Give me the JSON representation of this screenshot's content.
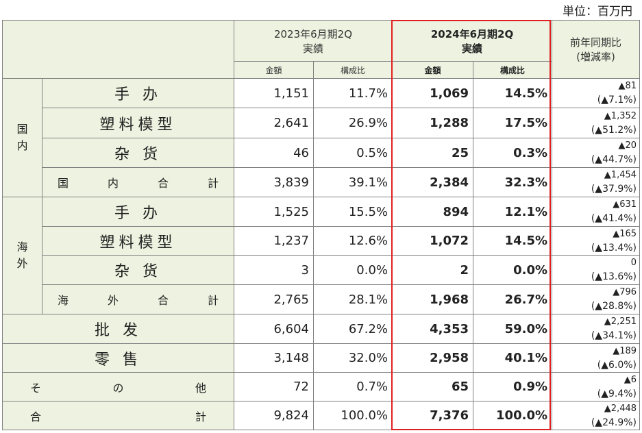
{
  "unit_label": "単位：百万円",
  "header": {
    "col2023": "2023年6月期2Q",
    "col2023_sub": "実績",
    "col2024": "2024年6月期2Q",
    "col2024_sub": "実績",
    "yoy": "前年同期比",
    "yoy_sub": "(増減率)",
    "amount": "金額",
    "ratio": "構成比"
  },
  "labels": {
    "domestic": [
      "国",
      "内"
    ],
    "overseas": [
      "海",
      "外"
    ],
    "te_ban": "手 办",
    "plastic": "塑料模型",
    "goods": "杂 货",
    "dom_total": [
      "国",
      "内",
      "合",
      "計"
    ],
    "ovs_total": [
      "海",
      "外",
      "合",
      "計"
    ],
    "wholesale": "批 发",
    "retail": "零 售",
    "other": [
      "そ",
      "の",
      "他"
    ],
    "grand": [
      "合",
      "計"
    ]
  },
  "rows": [
    {
      "a23": "1,151",
      "r23": "11.7%",
      "a24": "1,069",
      "r24": "14.5%",
      "yoy": "▲81",
      "yoy_pct": "(▲7.1%)"
    },
    {
      "a23": "2,641",
      "r23": "26.9%",
      "a24": "1,288",
      "r24": "17.5%",
      "yoy": "▲1,352",
      "yoy_pct": "(▲51.2%)"
    },
    {
      "a23": "46",
      "r23": "0.5%",
      "a24": "25",
      "r24": "0.3%",
      "yoy": "▲20",
      "yoy_pct": "(▲44.7%)"
    },
    {
      "a23": "3,839",
      "r23": "39.1%",
      "a24": "2,384",
      "r24": "32.3%",
      "yoy": "▲1,454",
      "yoy_pct": "(▲37.9%)"
    },
    {
      "a23": "1,525",
      "r23": "15.5%",
      "a24": "894",
      "r24": "12.1%",
      "yoy": "▲631",
      "yoy_pct": "(▲41.4%)"
    },
    {
      "a23": "1,237",
      "r23": "12.6%",
      "a24": "1,072",
      "r24": "14.5%",
      "yoy": "▲165",
      "yoy_pct": "(▲13.4%)"
    },
    {
      "a23": "3",
      "r23": "0.0%",
      "a24": "2",
      "r24": "0.0%",
      "yoy": "0",
      "yoy_pct": "(▲13.6%)"
    },
    {
      "a23": "2,765",
      "r23": "28.1%",
      "a24": "1,968",
      "r24": "26.7%",
      "yoy": "▲796",
      "yoy_pct": "(▲28.8%)"
    },
    {
      "a23": "6,604",
      "r23": "67.2%",
      "a24": "4,353",
      "r24": "59.0%",
      "yoy": "▲2,251",
      "yoy_pct": "(▲34.1%)"
    },
    {
      "a23": "3,148",
      "r23": "32.0%",
      "a24": "2,958",
      "r24": "40.1%",
      "yoy": "▲189",
      "yoy_pct": "(▲6.0%)"
    },
    {
      "a23": "72",
      "r23": "0.7%",
      "a24": "65",
      "r24": "0.9%",
      "yoy": "▲6",
      "yoy_pct": "(▲9.4%)"
    },
    {
      "a23": "9,824",
      "r23": "100.0%",
      "a24": "7,376",
      "r24": "100.0%",
      "yoy": "▲2,448",
      "yoy_pct": "(▲24.9%)"
    }
  ],
  "colors": {
    "header_bg": "#eef2e0",
    "highlight": "#e02020",
    "border": "#808080"
  }
}
